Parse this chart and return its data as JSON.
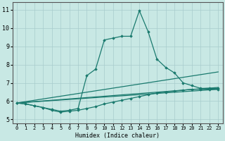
{
  "xlabel": "Humidex (Indice chaleur)",
  "xlim": [
    -0.5,
    23.5
  ],
  "ylim": [
    4.8,
    11.4
  ],
  "xticks": [
    0,
    1,
    2,
    3,
    4,
    5,
    6,
    7,
    8,
    9,
    10,
    11,
    12,
    13,
    14,
    15,
    16,
    17,
    18,
    19,
    20,
    21,
    22,
    23
  ],
  "yticks": [
    5,
    6,
    7,
    8,
    9,
    10,
    11
  ],
  "bg_color": "#c8e8e4",
  "line_color": "#1a7a6e",
  "grid_color": "#a8cccc",
  "lines": [
    {
      "x": [
        0,
        1,
        2,
        3,
        4,
        5,
        6,
        7,
        8,
        9,
        10,
        11,
        12,
        13,
        14,
        15,
        16,
        17,
        18,
        19,
        20,
        21,
        22,
        23
      ],
      "y": [
        5.9,
        5.85,
        5.75,
        5.65,
        5.55,
        5.45,
        5.5,
        5.6,
        7.4,
        7.75,
        9.35,
        9.45,
        9.55,
        9.55,
        10.95,
        9.8,
        8.3,
        7.85,
        7.55,
        7.0,
        6.85,
        6.7,
        6.7,
        6.7
      ],
      "marker": true
    },
    {
      "x": [
        0,
        23
      ],
      "y": [
        5.9,
        7.6
      ],
      "marker": false
    },
    {
      "x": [
        0,
        23
      ],
      "y": [
        5.9,
        6.75
      ],
      "marker": false
    },
    {
      "x": [
        0,
        23
      ],
      "y": [
        5.9,
        6.65
      ],
      "marker": false
    },
    {
      "x": [
        0,
        1,
        2,
        3,
        4,
        5,
        6,
        7,
        8,
        9,
        10,
        11,
        12,
        13,
        14,
        15,
        16,
        17,
        18,
        19,
        20,
        21,
        22,
        23
      ],
      "y": [
        5.9,
        5.85,
        5.75,
        5.65,
        5.5,
        5.4,
        5.45,
        5.5,
        5.6,
        5.7,
        5.85,
        5.95,
        6.05,
        6.15,
        6.25,
        6.35,
        6.45,
        6.5,
        6.55,
        6.6,
        6.65,
        6.65,
        6.65,
        6.65
      ],
      "marker": true
    }
  ]
}
